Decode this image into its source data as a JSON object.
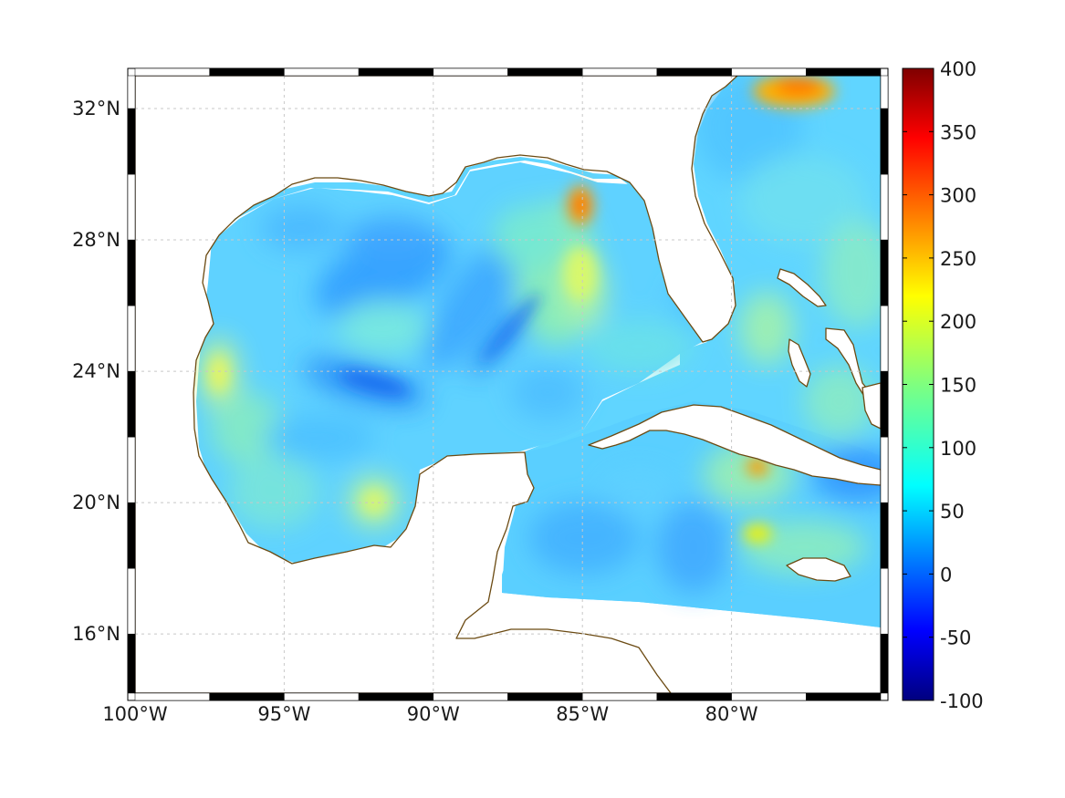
{
  "map": {
    "lon_range": [
      -100,
      -75
    ],
    "lat_range": [
      14.2,
      33
    ],
    "lon_ticks": [
      {
        "value": -100,
        "label": "100°W"
      },
      {
        "value": -95,
        "label": "95°W"
      },
      {
        "value": -90,
        "label": "90°W"
      },
      {
        "value": -85,
        "label": "85°W"
      },
      {
        "value": -80,
        "label": "80°W"
      }
    ],
    "lat_ticks": [
      {
        "value": 32,
        "label": "32°N"
      },
      {
        "value": 28,
        "label": "28°N"
      },
      {
        "value": 24,
        "label": "24°N"
      },
      {
        "value": 20,
        "label": "20°N"
      },
      {
        "value": 16,
        "label": "16°N"
      }
    ],
    "colors": {
      "coastline": "#6b4a12",
      "grid": "#c8c8c8",
      "field_base": "#5fd3ff"
    }
  },
  "colorbar": {
    "min": -100,
    "max": 400,
    "colormap": "jet",
    "ticks": [
      {
        "value": 400,
        "label": "400"
      },
      {
        "value": 350,
        "label": "350"
      },
      {
        "value": 300,
        "label": "300"
      },
      {
        "value": 250,
        "label": "250"
      },
      {
        "value": 200,
        "label": "200"
      },
      {
        "value": 150,
        "label": "150"
      },
      {
        "value": 100,
        "label": "100"
      },
      {
        "value": 50,
        "label": "50"
      },
      {
        "value": 0,
        "label": "0"
      },
      {
        "value": -50,
        "label": "-50"
      },
      {
        "value": -100,
        "label": "-100"
      }
    ]
  }
}
